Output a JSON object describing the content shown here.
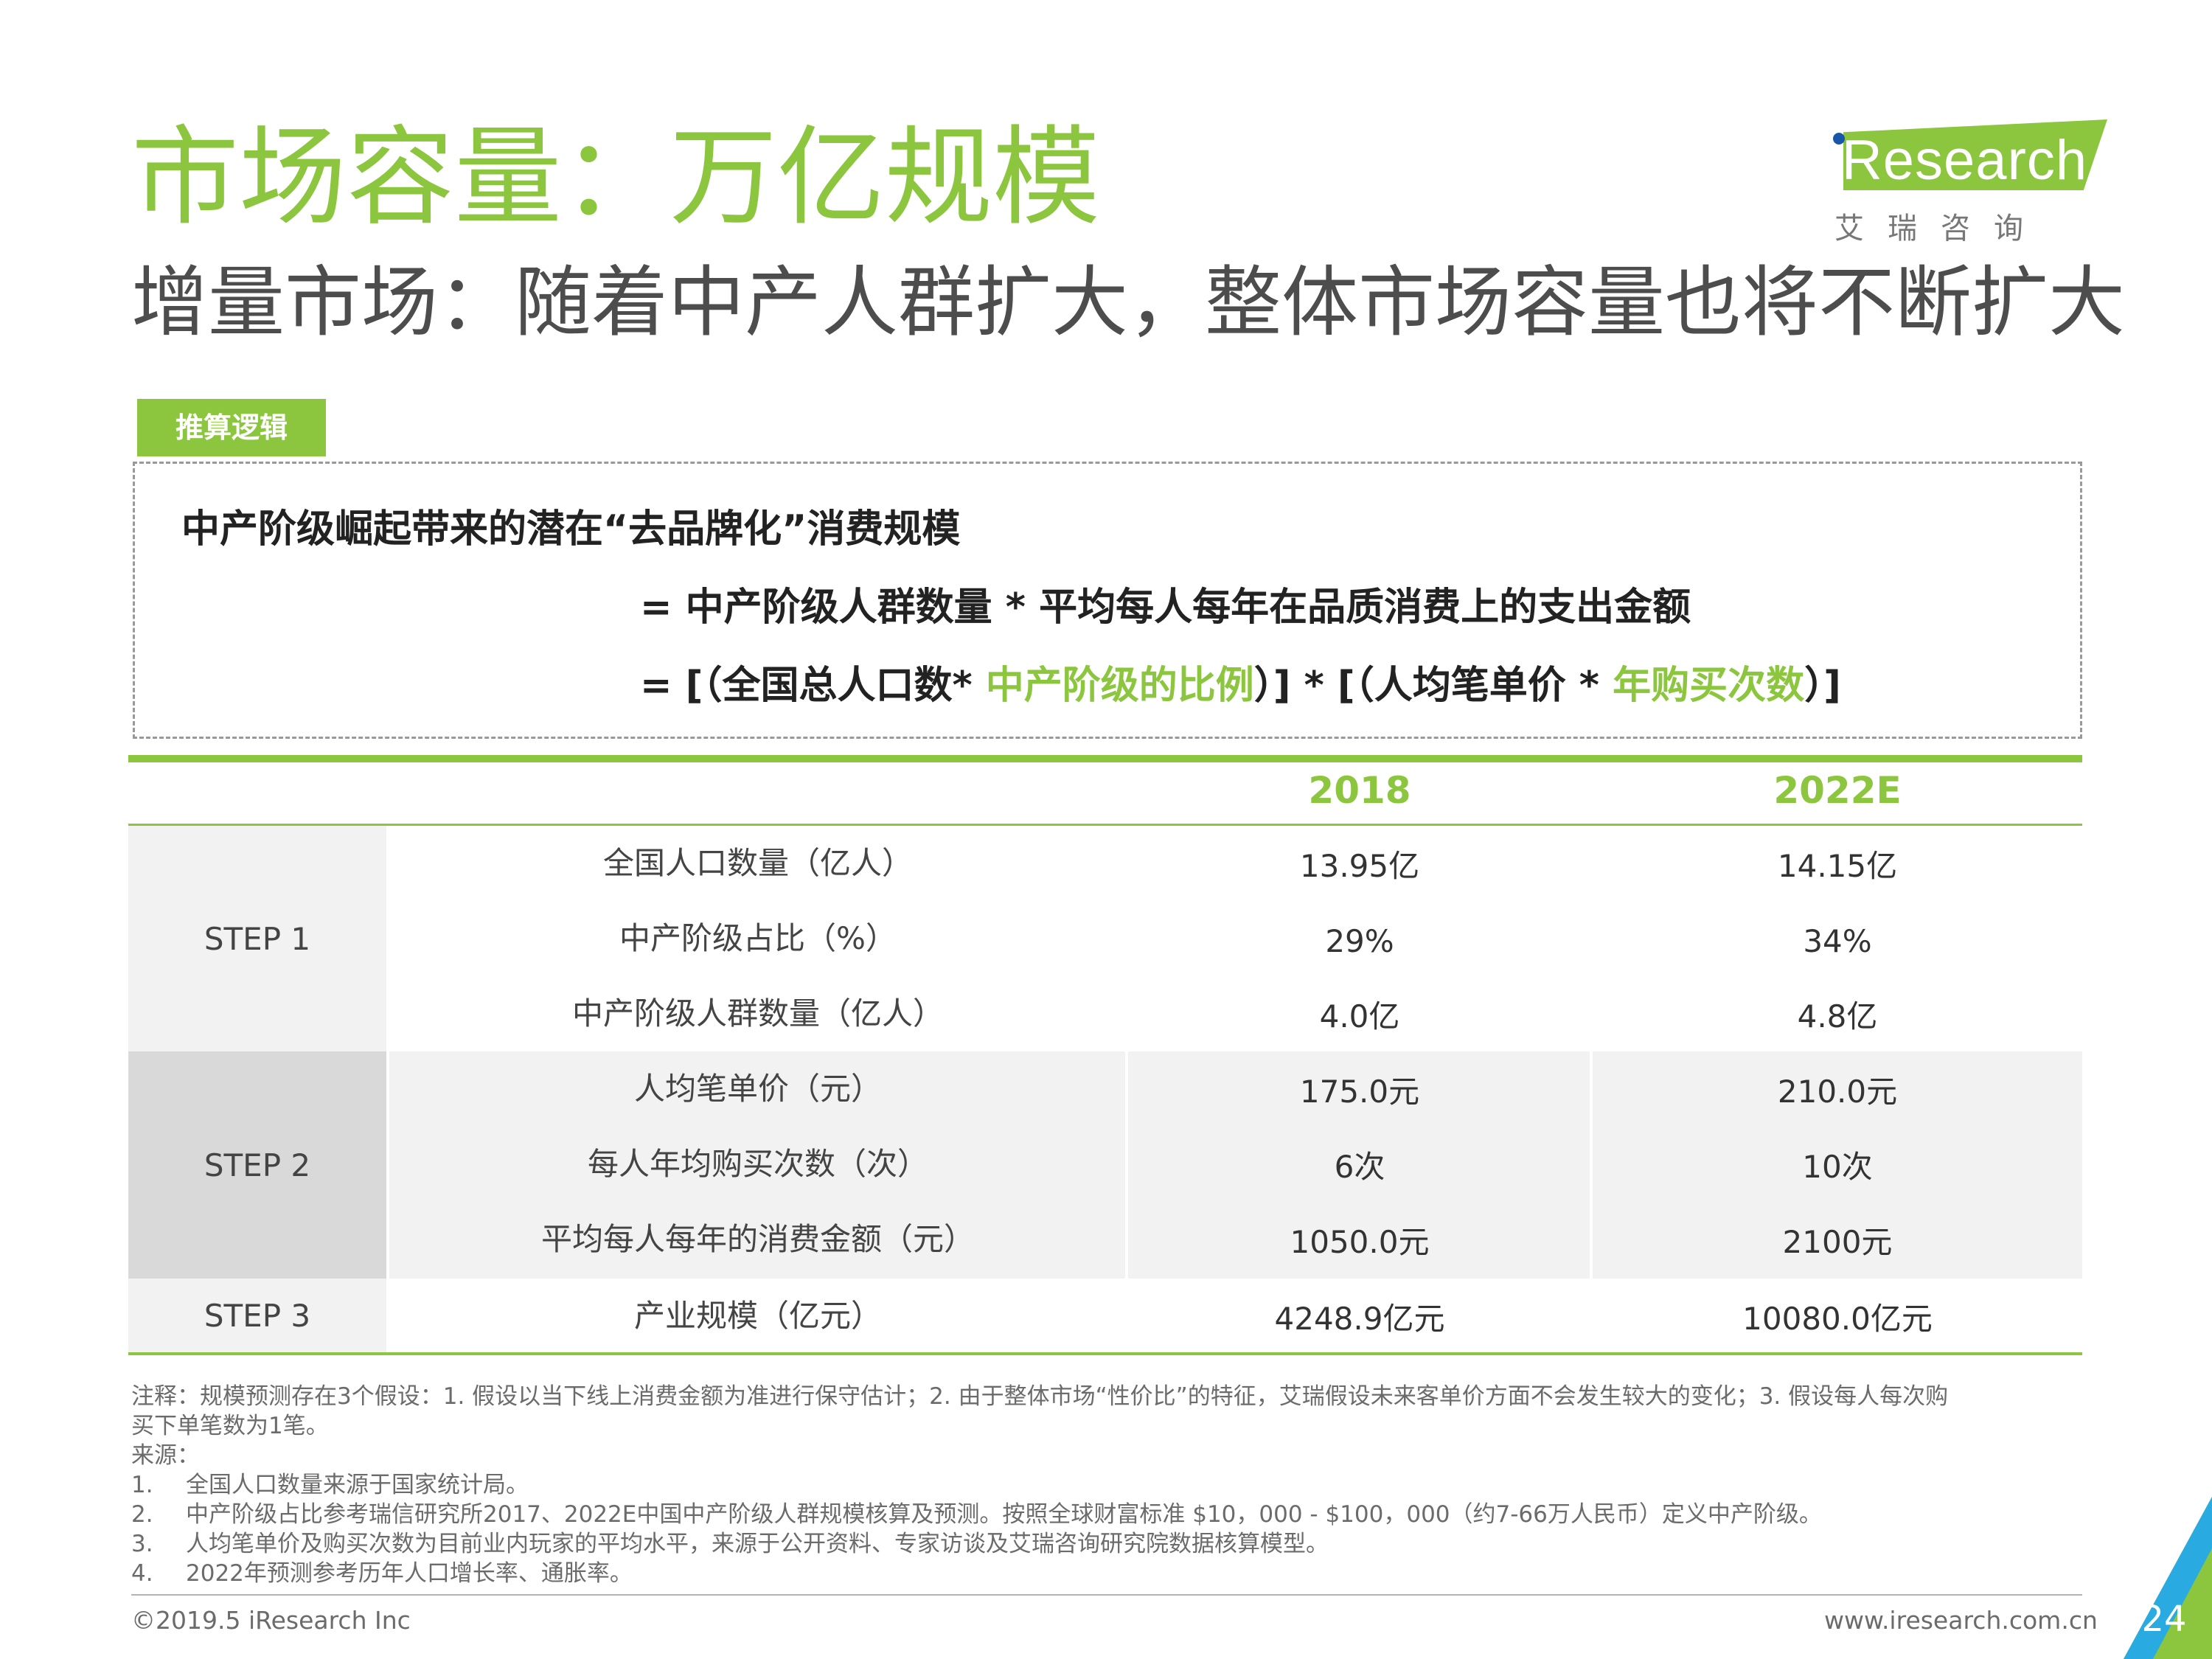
{
  "header": {
    "title": "市场容量：万亿规模",
    "subtitle": "增量市场：随着中产人群扩大，整体市场容量也将不断扩大"
  },
  "logo": {
    "text": "iResearch",
    "cn": "艾瑞咨询"
  },
  "logic": {
    "tag": "推算逻辑",
    "line1": "中产阶级崛起带来的潜在“去品牌化”消费规模",
    "line2": "= 中产阶级人群数量 * 平均每人每年在品质消费上的支出金额",
    "line3_a": "= [（全国总人口数* ",
    "line3_b": "中产阶级的比例",
    "line3_c": "）] * [（人均笔单价 * ",
    "line3_d": "年购买次数",
    "line3_e": "）]"
  },
  "table": {
    "years": [
      "2018",
      "2022E"
    ],
    "steps": [
      "STEP 1",
      "STEP 2",
      "STEP 3"
    ],
    "rows": [
      {
        "label": "全国人口数量（亿人）",
        "v2018": "13.95亿",
        "v2022": "14.15亿"
      },
      {
        "label": "中产阶级占比（%）",
        "v2018": "29%",
        "v2022": "34%"
      },
      {
        "label": "中产阶级人群数量（亿人）",
        "v2018": "4.0亿",
        "v2022": "4.8亿"
      },
      {
        "label": "人均笔单价（元）",
        "v2018": "175.0元",
        "v2022": "210.0元"
      },
      {
        "label": "每人年均购买次数（次）",
        "v2018": "6次",
        "v2022": "10次"
      },
      {
        "label": "平均每人每年的消费金额（元）",
        "v2018": "1050.0元",
        "v2022": "2100元"
      },
      {
        "label": "产业规模（亿元）",
        "v2018": "4248.9亿元",
        "v2022": "10080.0亿元"
      }
    ]
  },
  "notes": {
    "note_a": "注释：规模预测存在3个假设：1. 假设以当下线上消费金额为准进行保守估计；2. 由于整体市场“性价比”的特征，艾瑞假设未来客单价方面不会发生较大的变化；3. 假设每人每次购",
    "note_b": "买下单笔数为1笔。",
    "source_label": "来源：",
    "items": [
      {
        "num": "1.",
        "text": "全国人口数量来源于国家统计局。"
      },
      {
        "num": "2.",
        "text": "中产阶级占比参考瑞信研究所2017、2022E中国中产阶级人群规模核算及预测。按照全球财富标准 $10，000 - $100，000（约7-66万人民币）定义中产阶级。"
      },
      {
        "num": "3.",
        "text": "人均笔单价及购买次数为目前业内玩家的平均水平，来源于公开资料、专家访谈及艾瑞咨询研究院数据核算模型。"
      },
      {
        "num": "4.",
        "text": "2022年预测参考历年人口增长率、通胀率。"
      }
    ]
  },
  "footer": {
    "copyright": "©2019.5 iResearch Inc",
    "url": "www.iresearch.com.cn",
    "page": "24"
  },
  "colors": {
    "accent": "#8cc63f",
    "step1_bg": "#f2f2f2",
    "step2_bg": "#d9d9d9",
    "band_bg": "#f2f2f2"
  }
}
